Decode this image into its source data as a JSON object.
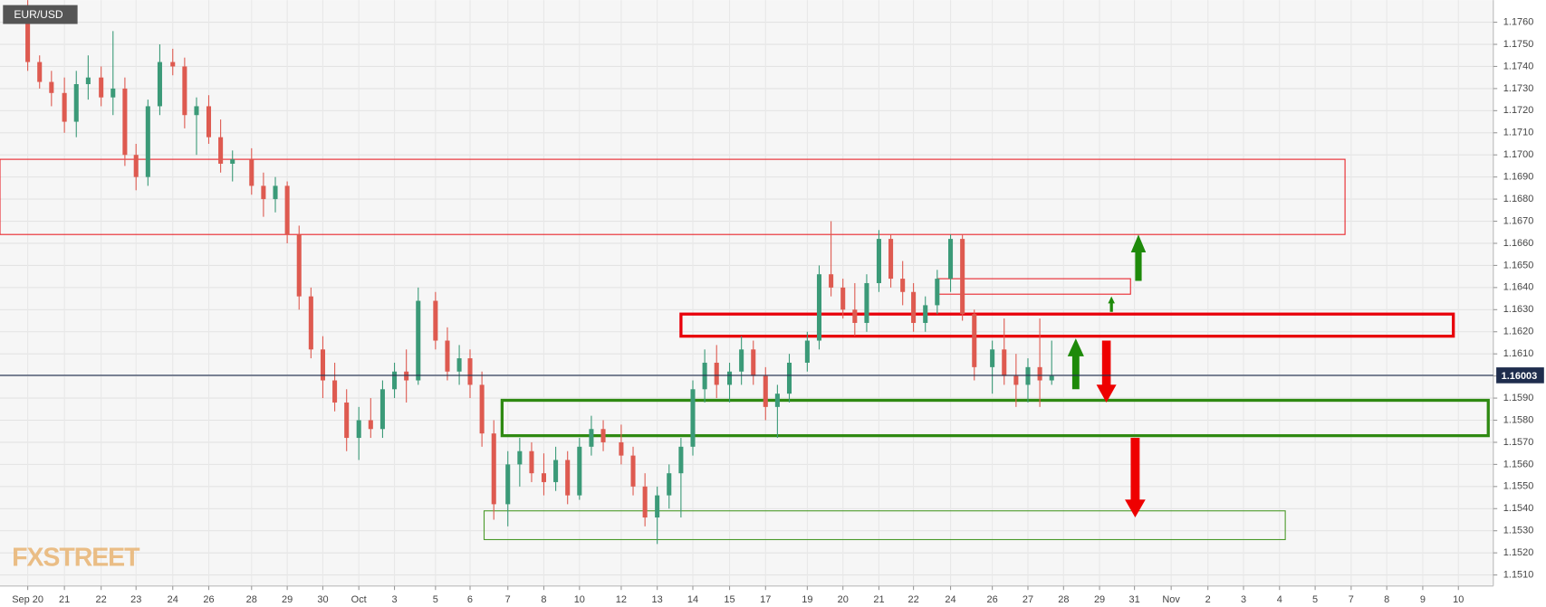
{
  "chart_data": {
    "type": "candlestick",
    "symbol": "EUR/USD",
    "watermark": "FXSTREET",
    "up_color": "#3b9a78",
    "down_color": "#de5a50",
    "grid": true,
    "xlim": [
      -0.77,
      40.72
    ],
    "ylim": [
      1.1505,
      1.177
    ],
    "yticks": [
      {
        "value": 1.151,
        "label": "1.1510"
      },
      {
        "value": 1.152,
        "label": "1.1520"
      },
      {
        "value": 1.153,
        "label": "1.1530"
      },
      {
        "value": 1.154,
        "label": "1.1540"
      },
      {
        "value": 1.155,
        "label": "1.1550"
      },
      {
        "value": 1.156,
        "label": "1.1560"
      },
      {
        "value": 1.157,
        "label": "1.1570"
      },
      {
        "value": 1.158,
        "label": "1.1580"
      },
      {
        "value": 1.159,
        "label": "1.1590"
      },
      {
        "value": 1.16,
        "label": "1.1600"
      },
      {
        "value": 1.161,
        "label": "1.1610"
      },
      {
        "value": 1.162,
        "label": "1.1620"
      },
      {
        "value": 1.163,
        "label": "1.1630"
      },
      {
        "value": 1.164,
        "label": "1.1640"
      },
      {
        "value": 1.165,
        "label": "1.1650"
      },
      {
        "value": 1.166,
        "label": "1.1660"
      },
      {
        "value": 1.167,
        "label": "1.1670"
      },
      {
        "value": 1.168,
        "label": "1.1680"
      },
      {
        "value": 1.169,
        "label": "1.1690"
      },
      {
        "value": 1.17,
        "label": "1.1700"
      },
      {
        "value": 1.171,
        "label": "1.1710"
      },
      {
        "value": 1.172,
        "label": "1.1720"
      },
      {
        "value": 1.173,
        "label": "1.1730"
      },
      {
        "value": 1.174,
        "label": "1.1740"
      },
      {
        "value": 1.175,
        "label": "1.1750"
      },
      {
        "value": 1.176,
        "label": "1.1760"
      }
    ],
    "xticks": [
      {
        "value": 0,
        "label": "Sep 20"
      },
      {
        "value": 1.02,
        "label": "21"
      },
      {
        "value": 2.04,
        "label": "22"
      },
      {
        "value": 3.01,
        "label": "23"
      },
      {
        "value": 4.03,
        "label": "24"
      },
      {
        "value": 5.03,
        "label": "26"
      },
      {
        "value": 6.22,
        "label": "28"
      },
      {
        "value": 7.21,
        "label": "29"
      },
      {
        "value": 8.2,
        "label": "30"
      },
      {
        "value": 9.2,
        "label": "Oct"
      },
      {
        "value": 10.19,
        "label": "3"
      },
      {
        "value": 11.33,
        "label": "5"
      },
      {
        "value": 12.29,
        "label": "6"
      },
      {
        "value": 13.34,
        "label": "7"
      },
      {
        "value": 14.34,
        "label": "8"
      },
      {
        "value": 15.33,
        "label": "10"
      },
      {
        "value": 16.49,
        "label": "12"
      },
      {
        "value": 17.49,
        "label": "13"
      },
      {
        "value": 18.48,
        "label": "14"
      },
      {
        "value": 19.5,
        "label": "15"
      },
      {
        "value": 20.5,
        "label": "17"
      },
      {
        "value": 21.66,
        "label": "19"
      },
      {
        "value": 22.65,
        "label": "20"
      },
      {
        "value": 23.65,
        "label": "21"
      },
      {
        "value": 24.61,
        "label": "22"
      },
      {
        "value": 25.64,
        "label": "24"
      },
      {
        "value": 26.8,
        "label": "26"
      },
      {
        "value": 27.79,
        "label": "27"
      },
      {
        "value": 28.78,
        "label": "28"
      },
      {
        "value": 29.78,
        "label": "29"
      },
      {
        "value": 30.75,
        "label": "31"
      },
      {
        "value": 31.77,
        "label": "Nov"
      },
      {
        "value": 32.79,
        "label": "2"
      },
      {
        "value": 33.78,
        "label": "3"
      },
      {
        "value": 34.78,
        "label": "4"
      },
      {
        "value": 35.77,
        "label": "5"
      },
      {
        "value": 36.77,
        "label": "7"
      },
      {
        "value": 37.76,
        "label": "8"
      },
      {
        "value": 38.76,
        "label": "9"
      },
      {
        "value": 39.75,
        "label": "10"
      }
    ],
    "x": [
      0,
      0.33,
      0.66,
      1.02,
      1.35,
      1.68,
      2.04,
      2.37,
      2.7,
      3.01,
      3.34,
      3.67,
      4.03,
      4.36,
      4.69,
      5.03,
      5.36,
      5.69,
      6.22,
      6.55,
      6.88,
      7.21,
      7.54,
      7.87,
      8.2,
      8.53,
      8.86,
      9.2,
      9.53,
      9.86,
      10.19,
      10.52,
      10.85,
      11.33,
      11.66,
      11.99,
      12.29,
      12.62,
      12.95,
      13.34,
      13.67,
      14.0,
      14.34,
      14.67,
      15.0,
      15.33,
      15.66,
      15.99,
      16.49,
      16.82,
      17.15,
      17.49,
      17.82,
      18.15,
      18.48,
      18.81,
      19.14,
      19.5,
      19.83,
      20.16,
      20.5,
      20.83,
      21.16,
      21.66,
      21.99,
      22.32,
      22.65,
      22.98,
      23.31,
      23.65,
      23.98,
      24.31,
      24.61,
      24.94,
      25.27,
      25.64,
      25.97,
      26.3,
      26.8,
      27.13,
      27.46,
      27.79,
      28.12,
      28.45
    ],
    "open": [
      1.176,
      1.1742,
      1.1733,
      1.1728,
      1.1715,
      1.1732,
      1.1735,
      1.1726,
      1.173,
      1.17,
      1.169,
      1.1722,
      1.1742,
      1.174,
      1.1718,
      1.1722,
      1.1708,
      1.1696,
      1.1698,
      1.1686,
      1.168,
      1.1686,
      1.1664,
      1.1636,
      1.1612,
      1.1598,
      1.1588,
      1.1572,
      1.158,
      1.1576,
      1.1594,
      1.1602,
      1.1598,
      1.1634,
      1.1616,
      1.1602,
      1.1608,
      1.1596,
      1.1574,
      1.1542,
      1.156,
      1.1566,
      1.1556,
      1.1552,
      1.1562,
      1.1546,
      1.1568,
      1.1576,
      1.157,
      1.1564,
      1.155,
      1.1536,
      1.1546,
      1.1556,
      1.1568,
      1.1594,
      1.1606,
      1.1596,
      1.1602,
      1.1612,
      1.16,
      1.1586,
      1.1592,
      1.1606,
      1.1616,
      1.1646,
      1.164,
      1.163,
      1.1624,
      1.1642,
      1.1662,
      1.1644,
      1.1638,
      1.1624,
      1.1632,
      1.1644,
      1.1662,
      1.1628,
      1.1604,
      1.1612,
      1.16,
      1.1596,
      1.1604,
      1.1598
    ],
    "high": [
      1.177,
      1.1745,
      1.1738,
      1.1735,
      1.1738,
      1.1745,
      1.174,
      1.1756,
      1.1735,
      1.1705,
      1.1725,
      1.175,
      1.1748,
      1.1744,
      1.1726,
      1.1727,
      1.1716,
      1.1702,
      1.1703,
      1.1692,
      1.169,
      1.1688,
      1.1668,
      1.164,
      1.1618,
      1.1606,
      1.1594,
      1.1586,
      1.159,
      1.1598,
      1.1606,
      1.1612,
      1.164,
      1.1638,
      1.1622,
      1.1614,
      1.1612,
      1.1602,
      1.158,
      1.1566,
      1.1572,
      1.157,
      1.1565,
      1.1568,
      1.1566,
      1.1572,
      1.1582,
      1.158,
      1.1578,
      1.1568,
      1.1556,
      1.155,
      1.156,
      1.1572,
      1.1598,
      1.1612,
      1.1614,
      1.1606,
      1.1618,
      1.1616,
      1.1604,
      1.1596,
      1.161,
      1.162,
      1.165,
      1.167,
      1.1644,
      1.1642,
      1.1646,
      1.1666,
      1.1664,
      1.1652,
      1.1642,
      1.1636,
      1.1648,
      1.1664,
      1.1664,
      1.163,
      1.1616,
      1.1626,
      1.161,
      1.1608,
      1.1626,
      1.1616
    ],
    "low": [
      1.1738,
      1.173,
      1.1722,
      1.171,
      1.1708,
      1.1725,
      1.1722,
      1.1718,
      1.1695,
      1.1684,
      1.1686,
      1.1718,
      1.1736,
      1.1712,
      1.17,
      1.1705,
      1.1692,
      1.1688,
      1.1682,
      1.1672,
      1.1674,
      1.166,
      1.163,
      1.1608,
      1.159,
      1.1584,
      1.1566,
      1.1562,
      1.1572,
      1.1572,
      1.159,
      1.1588,
      1.1596,
      1.1612,
      1.1598,
      1.1596,
      1.159,
      1.1568,
      1.1535,
      1.1532,
      1.155,
      1.1552,
      1.1546,
      1.1548,
      1.1542,
      1.1544,
      1.1564,
      1.1566,
      1.156,
      1.1546,
      1.1532,
      1.1524,
      1.154,
      1.1536,
      1.1564,
      1.1588,
      1.159,
      1.1588,
      1.1596,
      1.1596,
      1.158,
      1.1572,
      1.1588,
      1.1602,
      1.1612,
      1.1636,
      1.1626,
      1.1618,
      1.162,
      1.1638,
      1.164,
      1.1632,
      1.162,
      1.162,
      1.1628,
      1.1638,
      1.1625,
      1.1598,
      1.1592,
      1.1596,
      1.1586,
      1.1588,
      1.1586,
      1.1596
    ],
    "close": [
      1.1742,
      1.1733,
      1.1728,
      1.1715,
      1.1732,
      1.1735,
      1.1726,
      1.173,
      1.17,
      1.169,
      1.1722,
      1.1742,
      1.174,
      1.1718,
      1.1722,
      1.1708,
      1.1696,
      1.1698,
      1.1686,
      1.168,
      1.1686,
      1.1664,
      1.1636,
      1.1612,
      1.1598,
      1.1588,
      1.1572,
      1.158,
      1.1576,
      1.1594,
      1.1602,
      1.1598,
      1.1634,
      1.1616,
      1.1602,
      1.1608,
      1.1596,
      1.1574,
      1.1542,
      1.156,
      1.1566,
      1.1556,
      1.1552,
      1.1562,
      1.1546,
      1.1568,
      1.1576,
      1.157,
      1.1564,
      1.155,
      1.1536,
      1.1546,
      1.1556,
      1.1568,
      1.1594,
      1.1606,
      1.1596,
      1.1602,
      1.1612,
      1.16,
      1.1586,
      1.1592,
      1.1606,
      1.1616,
      1.1646,
      1.164,
      1.163,
      1.1624,
      1.1642,
      1.1662,
      1.1644,
      1.1638,
      1.1624,
      1.1632,
      1.1644,
      1.1662,
      1.1628,
      1.1604,
      1.1612,
      1.16,
      1.1596,
      1.1604,
      1.1598,
      1.16
    ],
    "current_price": 1.16003,
    "current_price_color": "#1f2d4d",
    "zones": [
      {
        "x0": -0.77,
        "x1": 36.6,
        "y0": 1.1664,
        "y1": 1.1698,
        "color": "#e8242a",
        "thick": false
      },
      {
        "x0": 25.28,
        "x1": 30.64,
        "y0": 1.1637,
        "y1": 1.1644,
        "color": "#e8242a",
        "thick": false
      },
      {
        "x0": 18.15,
        "x1": 39.61,
        "y0": 1.1618,
        "y1": 1.1628,
        "color": "#e8000a",
        "thick": true
      },
      {
        "x0": 13.18,
        "x1": 40.58,
        "y0": 1.1573,
        "y1": 1.1589,
        "color": "#2f8a12",
        "thick": true
      },
      {
        "x0": 12.68,
        "x1": 34.94,
        "y0": 1.1526,
        "y1": 1.1539,
        "color": "#4b9a2a",
        "thick": false
      }
    ],
    "arrows": [
      {
        "x": 30.86,
        "from": 1.1643,
        "to": 1.1664,
        "color": "#1e8a0a"
      },
      {
        "x": 30.11,
        "from": 1.1629,
        "to": 1.1636,
        "color": "#1e8a0a"
      },
      {
        "x": 29.12,
        "from": 1.1594,
        "to": 1.1617,
        "color": "#1e8a0a"
      },
      {
        "x": 29.97,
        "from": 1.1616,
        "to": 1.1588,
        "color": "#ee0000"
      },
      {
        "x": 30.77,
        "from": 1.1572,
        "to": 1.1536,
        "color": "#ee0000"
      }
    ]
  }
}
